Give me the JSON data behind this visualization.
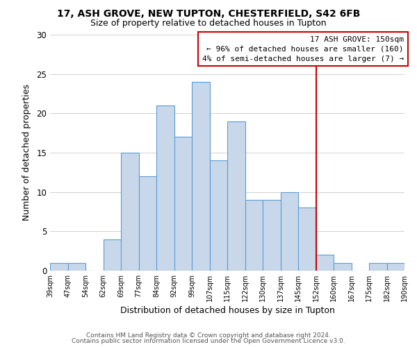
{
  "title1": "17, ASH GROVE, NEW TUPTON, CHESTERFIELD, S42 6FB",
  "title2": "Size of property relative to detached houses in Tupton",
  "xlabel": "Distribution of detached houses by size in Tupton",
  "ylabel": "Number of detached properties",
  "bar_labels": [
    "39sqm",
    "47sqm",
    "54sqm",
    "62sqm",
    "69sqm",
    "77sqm",
    "84sqm",
    "92sqm",
    "99sqm",
    "107sqm",
    "115sqm",
    "122sqm",
    "130sqm",
    "137sqm",
    "145sqm",
    "152sqm",
    "160sqm",
    "167sqm",
    "175sqm",
    "182sqm",
    "190sqm"
  ],
  "bar_values": [
    1,
    1,
    0,
    4,
    15,
    12,
    21,
    17,
    24,
    14,
    19,
    9,
    9,
    10,
    8,
    2,
    1,
    0,
    1,
    1
  ],
  "bar_color": "#c8d8ea",
  "bar_edge_color": "#5b9bd5",
  "ylim": [
    0,
    30
  ],
  "yticks": [
    0,
    5,
    10,
    15,
    20,
    25,
    30
  ],
  "vline_color": "#cc0000",
  "annotation_title": "17 ASH GROVE: 150sqm",
  "annotation_line1": "← 96% of detached houses are smaller (160)",
  "annotation_line2": "4% of semi-detached houses are larger (7) →",
  "annotation_box_color": "#ffffff",
  "annotation_box_edge": "#cc0000",
  "footer1": "Contains HM Land Registry data © Crown copyright and database right 2024.",
  "footer2": "Contains public sector information licensed under the Open Government Licence v3.0.",
  "background_color": "#ffffff",
  "grid_color": "#d0d0d0"
}
